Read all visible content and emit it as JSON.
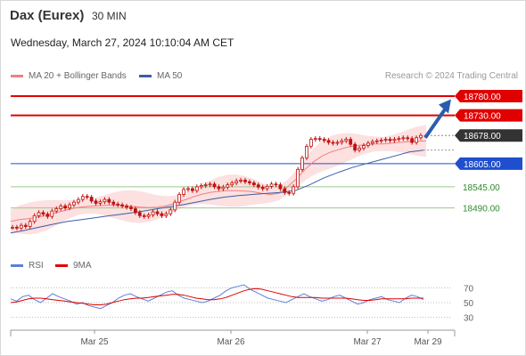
{
  "header": {
    "title": "Dax (Eurex)",
    "timeframe": "30 MIN",
    "datetime": "Wednesday, March 27, 2024 10:10:04 AM CET"
  },
  "legend_main": [
    {
      "label": "MA 20 + Bollinger Bands",
      "color": "#f08080"
    },
    {
      "label": "MA 50",
      "color": "#3a5ea8"
    }
  ],
  "credit": "Research © 2024 Trading Central",
  "legend_rsi": [
    {
      "label": "RSI",
      "color": "#5b7fd6"
    },
    {
      "label": "9MA",
      "color": "#e00000"
    }
  ],
  "colors": {
    "resistance": "#e00000",
    "current": "#333333",
    "support_blue": "#1f4fcf",
    "support_green": "#2e8b2e",
    "bollinger_fill": "#fde0e0",
    "ma20": "#f08080",
    "ma50": "#3a5ea8",
    "candle": "#c01010",
    "arrow": "#2a5db0"
  },
  "chart_data": [
    {
      "type": "line",
      "title": "",
      "y_axis_side": "right",
      "ylim": [
        18360,
        18810
      ],
      "x_tick_labels": [
        "Mar 25",
        "Mar 26",
        "Mar 27",
        "Mar 29"
      ],
      "price_levels": [
        {
          "value": 18780.0,
          "label": "18780.00",
          "style": "resistance"
        },
        {
          "value": 18730.0,
          "label": "18730.00",
          "style": "resistance"
        },
        {
          "value": 18678.0,
          "label": "18678.00",
          "style": "current"
        },
        {
          "value": 18605.0,
          "label": "18605.00",
          "style": "support_blue"
        },
        {
          "value": 18545.0,
          "label": "18545.00",
          "style": "support_green"
        },
        {
          "value": 18490.0,
          "label": "18490.00",
          "style": "support_green"
        }
      ],
      "series": [
        {
          "name": "Price",
          "values": [
            18440,
            18438,
            18445,
            18442,
            18455,
            18470,
            18478,
            18474,
            18468,
            18482,
            18488,
            18495,
            18490,
            18498,
            18505,
            18512,
            18520,
            18518,
            18508,
            18502,
            18506,
            18512,
            18505,
            18500,
            18498,
            18495,
            18492,
            18488,
            18478,
            18470,
            18468,
            18472,
            18480,
            18475,
            18470,
            18475,
            18485,
            18505,
            18525,
            18538,
            18540,
            18535,
            18545,
            18548,
            18550,
            18552,
            18545,
            18540,
            18544,
            18550,
            18555,
            18560,
            18562,
            18558,
            18555,
            18550,
            18544,
            18540,
            18546,
            18552,
            18550,
            18540,
            18530,
            18528,
            18545,
            18590,
            18620,
            18650,
            18668,
            18670,
            18668,
            18665,
            18660,
            18658,
            18660,
            18664,
            18668,
            18655,
            18640,
            18645,
            18652,
            18658,
            18662,
            18664,
            18666,
            18668,
            18665,
            18668,
            18670,
            18672,
            18670,
            18660,
            18672,
            18678
          ]
        },
        {
          "name": "MA 20",
          "values": [
            18455,
            18460,
            18462,
            18466,
            18470,
            18476,
            18482,
            18488,
            18492,
            18494,
            18496,
            18497,
            18497,
            18496,
            18494,
            18492,
            18491,
            18492,
            18496,
            18502,
            18510,
            18518,
            18525,
            18530,
            18533,
            18535,
            18535,
            18534,
            18532,
            18528,
            18525,
            18528,
            18545,
            18565,
            18590,
            18610,
            18625,
            18635,
            18642,
            18648,
            18652,
            18654,
            18656,
            18656,
            18658,
            18660,
            18662,
            18663,
            18664
          ]
        },
        {
          "name": "MA 50",
          "values": [
            18425,
            18432,
            18440,
            18448,
            18455,
            18460,
            18465,
            18470,
            18475,
            18480,
            18486,
            18492,
            18498,
            18505,
            18512,
            18518,
            18522,
            18525,
            18528,
            18530,
            18535,
            18550,
            18568,
            18582,
            18595,
            18605,
            18615,
            18625,
            18635,
            18640
          ]
        }
      ]
    },
    {
      "type": "line",
      "title": "",
      "ylim": [
        20,
        80
      ],
      "y_tick_labels": [
        "70",
        "50",
        "30"
      ],
      "y_ticks": [
        70,
        50,
        30
      ],
      "series": [
        {
          "name": "RSI",
          "values": [
            55,
            52,
            58,
            60,
            54,
            50,
            56,
            62,
            58,
            55,
            52,
            48,
            50,
            46,
            44,
            42,
            46,
            50,
            56,
            60,
            62,
            58,
            55,
            52,
            56,
            60,
            64,
            66,
            60,
            56,
            54,
            52,
            50,
            52,
            56,
            60,
            66,
            70,
            72,
            74,
            68,
            64,
            60,
            56,
            54,
            52,
            50,
            54,
            58,
            62,
            58,
            55,
            52,
            54,
            58,
            60,
            56,
            52,
            48,
            50,
            54,
            56,
            58,
            54,
            52,
            50,
            56,
            60,
            58,
            54
          ]
        },
        {
          "name": "9MA",
          "values": [
            50,
            51,
            53,
            55,
            56,
            56,
            55,
            54,
            53,
            52,
            51,
            50,
            49,
            48,
            47,
            47,
            48,
            50,
            52,
            54,
            55,
            56,
            56,
            57,
            58,
            59,
            60,
            61,
            61,
            60,
            58,
            56,
            55,
            54,
            54,
            55,
            57,
            60,
            63,
            66,
            68,
            69,
            68,
            66,
            64,
            62,
            60,
            58,
            57,
            57,
            57,
            57,
            56,
            56,
            56,
            56,
            56,
            55,
            54,
            53,
            53,
            54,
            55,
            55,
            55,
            55,
            55,
            56,
            56,
            56
          ]
        }
      ]
    }
  ]
}
